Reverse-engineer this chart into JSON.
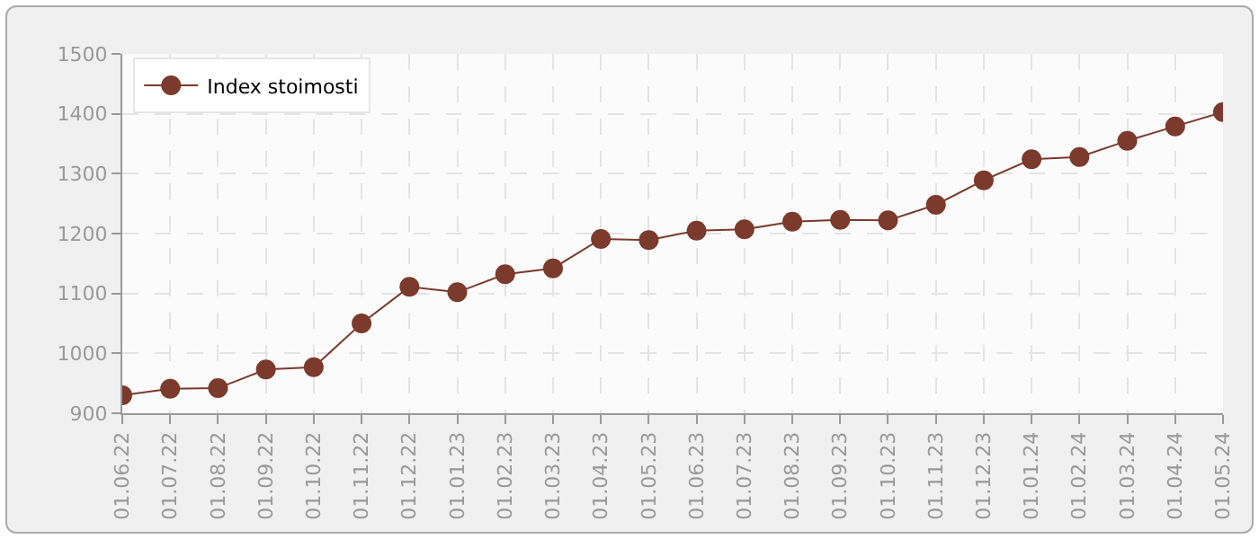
{
  "chart_data": {
    "type": "line",
    "categories": [
      "01.06.22",
      "01.07.22",
      "01.08.22",
      "01.09.22",
      "01.10.22",
      "01.11.22",
      "01.12.22",
      "01.01.23",
      "01.02.23",
      "01.03.23",
      "01.04.23",
      "01.05.23",
      "01.06.23",
      "01.07.23",
      "01.08.23",
      "01.09.23",
      "01.10.23",
      "01.11.23",
      "01.12.23",
      "01.01.24",
      "01.02.24",
      "01.03.24",
      "01.04.24",
      "01.05.24"
    ],
    "series": [
      {
        "name": "Index stoimosti",
        "color": "#7b3a2c",
        "values": [
          930,
          941,
          942,
          973,
          977,
          1050,
          1111,
          1102,
          1132,
          1142,
          1191,
          1189,
          1205,
          1207,
          1220,
          1223,
          1222,
          1248,
          1289,
          1324,
          1328,
          1355,
          1379,
          1403
        ]
      }
    ],
    "ylim": [
      900,
      1500
    ],
    "yticks": [
      900,
      1000,
      1100,
      1200,
      1300,
      1400,
      1500
    ],
    "grid": true,
    "legend": "top left",
    "marker": "circle",
    "line_style": "solid"
  }
}
